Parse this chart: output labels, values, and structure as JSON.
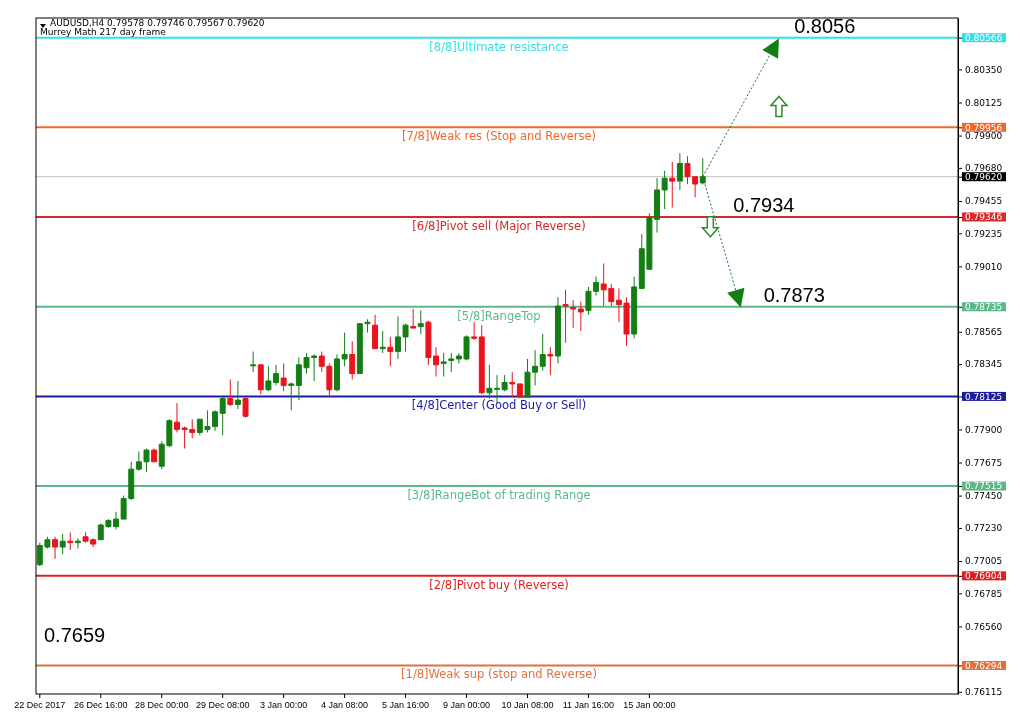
{
  "chart_data": {
    "type": "candlestick",
    "title": "AUDUSD,H4  0.79578 0.79746 0.79567 0.79620",
    "subtitle": "Murrey Math 217 day frame",
    "categories": [
      "22 Dec 2017",
      null,
      null,
      null,
      null,
      null,
      null,
      null,
      "26 Dec 16:00",
      null,
      null,
      null,
      null,
      null,
      null,
      null,
      "28 Dec 00:00",
      null,
      null,
      null,
      null,
      null,
      null,
      null,
      "29 Dec 08:00",
      null,
      null,
      null,
      null,
      null,
      null,
      null,
      "3 Jan 00:00",
      null,
      null,
      null,
      null,
      null,
      null,
      null,
      "4 Jan 08:00",
      null,
      null,
      null,
      null,
      null,
      null,
      null,
      "5 Jan 16:00",
      null,
      null,
      null,
      null,
      null,
      null,
      null,
      "9 Jan 00:00",
      null,
      null,
      null,
      null,
      null,
      null,
      null,
      "10 Jan 08:00",
      null,
      null,
      null,
      null,
      null,
      null,
      null,
      "11 Jan 16:00",
      null,
      null,
      null,
      null,
      null,
      null,
      null,
      "15 Jan 00:00",
      null,
      null,
      null,
      null,
      null,
      null,
      null,
      null,
      null,
      null,
      null,
      null,
      null,
      null,
      null,
      null,
      null,
      null,
      null,
      null,
      null,
      null,
      null,
      null,
      null,
      null,
      null,
      null,
      null,
      null,
      null,
      null,
      null,
      null,
      null,
      null,
      null,
      null,
      null,
      null
    ],
    "ohlc": [
      [
        0.7698,
        0.7713,
        0.7697,
        0.7711
      ],
      [
        0.771,
        0.7717,
        0.7709,
        0.7715
      ],
      [
        0.7715,
        0.7717,
        0.7702,
        0.771
      ],
      [
        0.771,
        0.7719,
        0.7705,
        0.7714
      ],
      [
        0.7714,
        0.772,
        0.7708,
        0.7713
      ],
      [
        0.7713,
        0.7716,
        0.7709,
        0.7714
      ],
      [
        0.7717,
        0.772,
        0.7713,
        0.7714
      ],
      [
        0.7715,
        0.7716,
        0.771,
        0.7712
      ],
      [
        0.7715,
        0.7726,
        0.7715,
        0.7725
      ],
      [
        0.7724,
        0.7729,
        0.7723,
        0.7728
      ],
      [
        0.7724,
        0.7734,
        0.7722,
        0.7729
      ],
      [
        0.7729,
        0.7745,
        0.7729,
        0.7743
      ],
      [
        0.7743,
        0.7768,
        0.7742,
        0.7763
      ],
      [
        0.7763,
        0.7775,
        0.7762,
        0.7768
      ],
      [
        0.7768,
        0.7777,
        0.7761,
        0.7776
      ],
      [
        0.7776,
        0.7777,
        0.7768,
        0.7768
      ],
      [
        0.7765,
        0.7782,
        0.7763,
        0.778
      ],
      [
        0.7779,
        0.7797,
        0.7778,
        0.7796
      ],
      [
        0.7795,
        0.7808,
        0.7788,
        0.779
      ],
      [
        0.7791,
        0.7792,
        0.7777,
        0.779
      ],
      [
        0.779,
        0.7797,
        0.7784,
        0.7788
      ],
      [
        0.7788,
        0.7797,
        0.7786,
        0.7797
      ],
      [
        0.779,
        0.7803,
        0.7788,
        0.7792
      ],
      [
        0.7792,
        0.7803,
        0.7789,
        0.7802
      ],
      [
        0.7801,
        0.7812,
        0.7786,
        0.7811
      ],
      [
        0.7811,
        0.7824,
        0.7806,
        0.7807
      ],
      [
        0.7807,
        0.7823,
        0.7804,
        0.781
      ],
      [
        0.7811,
        0.7812,
        0.7798,
        0.7799
      ],
      [
        0.7834,
        0.7843,
        0.7829,
        0.7834
      ],
      [
        0.7834,
        0.7834,
        0.7814,
        0.7817
      ],
      [
        0.7817,
        0.7833,
        0.7816,
        0.7823
      ],
      [
        0.7822,
        0.7834,
        0.782,
        0.7828
      ],
      [
        0.7825,
        0.7835,
        0.7816,
        0.782
      ],
      [
        0.782,
        0.7822,
        0.7803,
        0.7821
      ],
      [
        0.782,
        0.7839,
        0.781,
        0.7834
      ],
      [
        0.7832,
        0.7842,
        0.7828,
        0.7839
      ],
      [
        0.7839,
        0.7841,
        0.7823,
        0.784
      ],
      [
        0.784,
        0.7843,
        0.7829,
        0.7833
      ],
      [
        0.7833,
        0.7835,
        0.7812,
        0.7817
      ],
      [
        0.7817,
        0.7841,
        0.7816,
        0.7838
      ],
      [
        0.7838,
        0.7856,
        0.7833,
        0.7841
      ],
      [
        0.7841,
        0.785,
        0.7824,
        0.7828
      ],
      [
        0.7828,
        0.7862,
        0.7828,
        0.7862
      ],
      [
        0.7862,
        0.7865,
        0.7856,
        0.7863
      ],
      [
        0.7861,
        0.7868,
        0.7845,
        0.7845
      ],
      [
        0.7845,
        0.7857,
        0.7842,
        0.7846
      ],
      [
        0.7846,
        0.7853,
        0.7833,
        0.7843
      ],
      [
        0.7843,
        0.7867,
        0.7838,
        0.7853
      ],
      [
        0.7853,
        0.7862,
        0.7843,
        0.7861
      ],
      [
        0.786,
        0.7872,
        0.7859,
        0.7859
      ],
      [
        0.786,
        0.7871,
        0.7855,
        0.7862
      ],
      [
        0.7863,
        0.7864,
        0.7834,
        0.7839
      ],
      [
        0.784,
        0.7846,
        0.7826,
        0.7834
      ],
      [
        0.7835,
        0.7842,
        0.7826,
        0.7836
      ],
      [
        0.7837,
        0.7842,
        0.7829,
        0.7838
      ],
      [
        0.7838,
        0.7842,
        0.7835,
        0.784
      ],
      [
        0.7838,
        0.7854,
        0.7837,
        0.7853
      ],
      [
        0.7853,
        0.7863,
        0.7851,
        0.7852
      ],
      [
        0.7853,
        0.7861,
        0.7814,
        0.7815
      ],
      [
        0.7815,
        0.7834,
        0.7811,
        0.7818
      ],
      [
        0.7818,
        0.7827,
        0.7808,
        0.7818
      ],
      [
        0.7817,
        0.7827,
        0.7816,
        0.7822
      ],
      [
        0.7822,
        0.7829,
        0.7812,
        0.7821
      ],
      [
        0.7821,
        0.7821,
        0.7812,
        0.7812
      ],
      [
        0.7812,
        0.7838,
        0.7812,
        0.7829
      ],
      [
        0.7829,
        0.7844,
        0.782,
        0.7833
      ],
      [
        0.7833,
        0.7855,
        0.783,
        0.7841
      ],
      [
        0.7841,
        0.7846,
        0.7827,
        0.784
      ],
      [
        0.784,
        0.788,
        0.7835,
        0.7874
      ],
      [
        0.7875,
        0.7885,
        0.7849,
        0.7874
      ],
      [
        0.7873,
        0.7878,
        0.7859,
        0.7872
      ],
      [
        0.7872,
        0.7877,
        0.7857,
        0.787
      ],
      [
        0.7871,
        0.7887,
        0.7868,
        0.7884
      ],
      [
        0.7884,
        0.7894,
        0.7881,
        0.789
      ],
      [
        0.7889,
        0.7903,
        0.7874,
        0.7885
      ],
      [
        0.7886,
        0.7889,
        0.7874,
        0.7877
      ],
      [
        0.7878,
        0.7886,
        0.7863,
        0.7875
      ],
      [
        0.7876,
        0.788,
        0.7847,
        0.7855
      ],
      [
        0.7855,
        0.7894,
        0.7852,
        0.7887
      ],
      [
        0.7886,
        0.7923,
        0.7886,
        0.7913
      ],
      [
        0.7899,
        0.7937,
        0.7899,
        0.7934
      ],
      [
        0.7933,
        0.7961,
        0.7924,
        0.7953
      ],
      [
        0.7953,
        0.7966,
        0.794,
        0.7961
      ],
      [
        0.7961,
        0.7972,
        0.7941,
        0.7959
      ],
      [
        0.7959,
        0.7978,
        0.7953,
        0.7971
      ],
      [
        0.7971,
        0.7976,
        0.7957,
        0.7962
      ],
      [
        0.7962,
        0.7962,
        0.7948,
        0.7957
      ],
      [
        0.79578,
        0.79746,
        0.79567,
        0.7962
      ],
      null,
      null,
      null,
      null,
      null,
      null,
      null,
      null,
      null,
      null,
      null,
      null,
      null,
      null,
      null,
      null,
      null,
      null,
      null,
      null,
      null,
      null,
      null,
      null,
      null,
      null,
      null,
      null,
      null,
      null,
      null,
      null,
      null
    ],
    "ylim": [
      0.761,
      0.807
    ],
    "yticks": [
      {
        "value": 0.80566,
        "label": "0.80566"
      },
      {
        "value": 0.8035,
        "label": "0.80350"
      },
      {
        "value": 0.80125,
        "label": "0.80125"
      },
      {
        "value": 0.79956,
        "label": "0.79956"
      },
      {
        "value": 0.799,
        "label": "0.79900"
      },
      {
        "value": 0.7968,
        "label": "0.79680"
      },
      {
        "value": 0.7962,
        "label": "0.79620"
      },
      {
        "value": 0.79455,
        "label": "0.79455"
      },
      {
        "value": 0.79346,
        "label": "0.79346"
      },
      {
        "value": 0.79235,
        "label": "0.79235"
      },
      {
        "value": 0.7901,
        "label": "0.79010"
      },
      {
        "value": 0.78735,
        "label": "0.78735"
      },
      {
        "value": 0.78565,
        "label": "0.78565"
      },
      {
        "value": 0.78345,
        "label": "0.78345"
      },
      {
        "value": 0.78125,
        "label": "0.78125"
      },
      {
        "value": 0.779,
        "label": "0.77900"
      },
      {
        "value": 0.77675,
        "label": "0.77675"
      },
      {
        "value": 0.77515,
        "label": "0.77515"
      },
      {
        "value": 0.7745,
        "label": "0.77450"
      },
      {
        "value": 0.7723,
        "label": "0.77230"
      },
      {
        "value": 0.77005,
        "label": "0.77005"
      },
      {
        "value": 0.76904,
        "label": "0.76904"
      },
      {
        "value": 0.76785,
        "label": "0.76785"
      },
      {
        "value": 0.7656,
        "label": "0.76560"
      },
      {
        "value": 0.76294,
        "label": "0.76294"
      },
      {
        "value": 0.76115,
        "label": "0.76115"
      }
    ],
    "ref_lines": [
      {
        "axis": "y",
        "value": 0.80566,
        "label": "[8/8]Ultimate resistance",
        "color": "#33e0e6"
      },
      {
        "axis": "y",
        "value": 0.79956,
        "label": "[7/8]Weak res (Stop and Reverse)",
        "color": "#f0682a"
      },
      {
        "axis": "y",
        "value": 0.7962,
        "color": "#c0c0c0"
      },
      {
        "axis": "y",
        "value": 0.79346,
        "label": "[6/8]Pivot sell (Major Reverse)",
        "color": "#d42a2a"
      },
      {
        "axis": "y",
        "value": 0.78735,
        "label": "[5/8]RangeTop",
        "color": "#5cb887"
      },
      {
        "axis": "y",
        "value": 0.78125,
        "label": "[4/8]Center (Good Buy or Sell)",
        "color": "#1c1ca0"
      },
      {
        "axis": "y",
        "value": 0.77515,
        "label": "[3/8]RangeBot of trading Range",
        "color": "#5cb887"
      },
      {
        "axis": "y",
        "value": 0.76904,
        "label": "[2/8]Pivot buy (Reverse)",
        "color": "#e01e1e"
      },
      {
        "axis": "y",
        "value": 0.76294,
        "label": "[1/8]Weak sup (stop and Reverse)",
        "color": "#e07040"
      }
    ],
    "annotations": [
      {
        "text": "0.8056",
        "y": 0.8056
      },
      {
        "text": "0.7934",
        "y": 0.7934
      },
      {
        "text": "0.7873",
        "y": 0.7873
      },
      "0.7659"
    ]
  }
}
